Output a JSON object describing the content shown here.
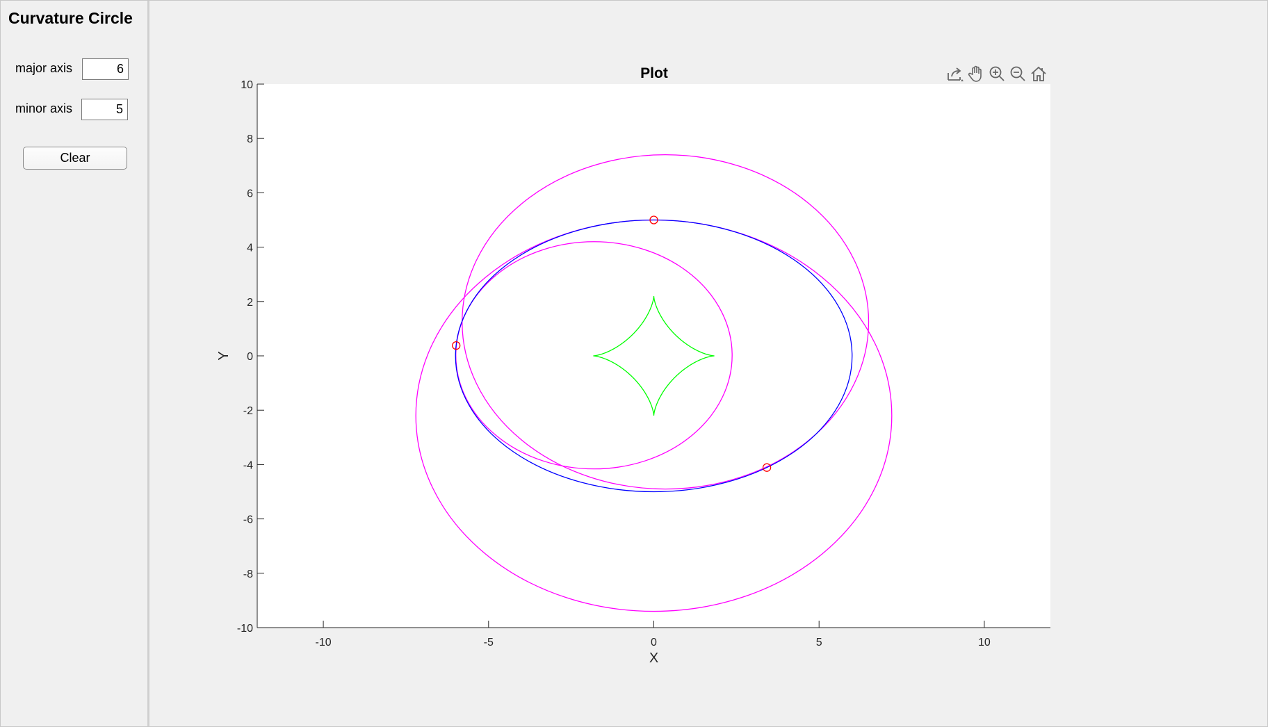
{
  "app": {
    "title": "Curvature Circle"
  },
  "controls": {
    "major_axis_label": "major axis",
    "major_axis_value": "6",
    "minor_axis_label": "minor axis",
    "minor_axis_value": "5",
    "clear_label": "Clear"
  },
  "toolbar": {
    "icons": [
      "export-icon",
      "pan-icon",
      "zoom-in-icon",
      "zoom-out-icon",
      "home-icon"
    ]
  },
  "chart_data": {
    "type": "line",
    "title": "Plot",
    "xlabel": "X",
    "ylabel": "Y",
    "xlim": [
      -12,
      12
    ],
    "ylim": [
      -10,
      10
    ],
    "xticks": [
      -10,
      -5,
      0,
      5,
      10
    ],
    "xtick_labels": [
      "-10",
      "-5",
      "0",
      "5",
      "10"
    ],
    "yticks": [
      10,
      8,
      6,
      4,
      2,
      0,
      -2,
      -4,
      -6,
      -8,
      -10
    ],
    "ytick_labels": [
      "10",
      "8",
      "6",
      "4",
      "2",
      "0",
      "-2",
      "-4",
      "-6",
      "-8",
      "-10"
    ],
    "grid": false,
    "colors": {
      "ellipse": "#0000ff",
      "evolute": "#00ff00",
      "circle": "#ff00ff",
      "marker": "#ff0000"
    },
    "ellipse": {
      "a": 6,
      "b": 5
    },
    "evolute": {
      "cx": 1.8333,
      "cy": 2.2
    },
    "circles": [
      {
        "cx": 0,
        "cy": -2.2,
        "r": 7.2
      },
      {
        "cx": -1.81,
        "cy": 0.02,
        "r": 4.18
      },
      {
        "cx": 0.35,
        "cy": 1.25,
        "r": 6.15
      }
    ],
    "points": [
      {
        "x": 0,
        "y": 5
      },
      {
        "x": -5.98,
        "y": 0.38
      },
      {
        "x": 3.42,
        "y": -4.11
      }
    ]
  }
}
